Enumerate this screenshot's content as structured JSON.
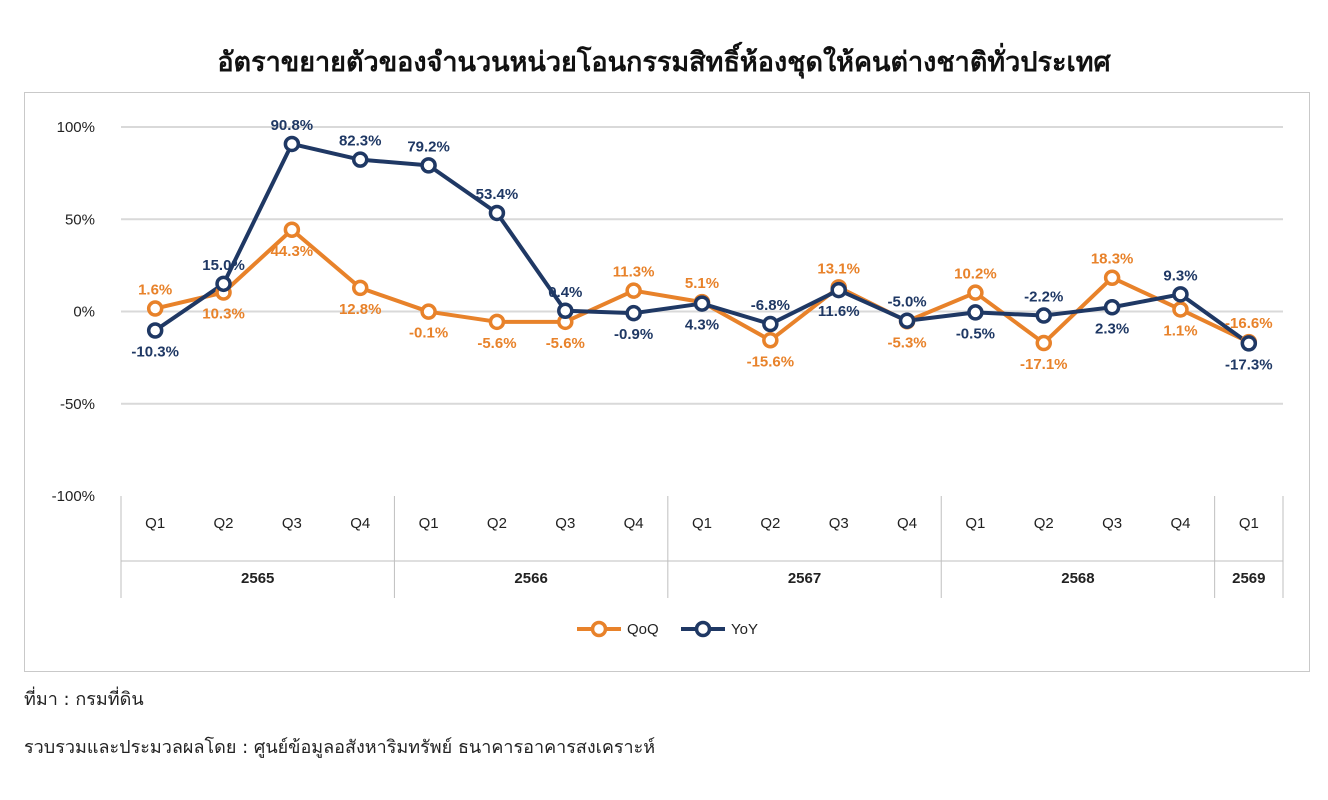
{
  "title": "อัตราขยายตัวของจำนวนหน่วยโอนกรรมสิทธิ์ห้องชุดให้คนต่างชาติทั่วประเทศ",
  "source_note": "ที่มา : กรมที่ดิน",
  "compiled_note": "รวบรวมและประมวลผลโดย : ศูนย์ข้อมูลอสังหาริมทรัพย์ ธนาคารอาคารสงเคราะห์",
  "colors": {
    "qoq": "#E8822A",
    "yoy": "#1F3864",
    "grid": "#d9d9d9",
    "divider": "#bfbfbf"
  },
  "chart_data": {
    "type": "line",
    "title": "อัตราขยายตัวของจำนวนหน่วยโอนกรรมสิทธิ์ห้องชุดให้คนต่างชาติทั่วประเทศ",
    "ylim": [
      -100,
      100
    ],
    "yticks": [
      100,
      50,
      0,
      -50,
      -100
    ],
    "ytick_labels": [
      "100%",
      "50%",
      "0%",
      "-50%",
      "-100%"
    ],
    "categories": [
      "Q1",
      "Q2",
      "Q3",
      "Q4",
      "Q1",
      "Q2",
      "Q3",
      "Q4",
      "Q1",
      "Q2",
      "Q3",
      "Q4",
      "Q1",
      "Q2",
      "Q3",
      "Q4",
      "Q1"
    ],
    "years": [
      {
        "label": "2565",
        "count": 4
      },
      {
        "label": "2566",
        "count": 4
      },
      {
        "label": "2567",
        "count": 4
      },
      {
        "label": "2568",
        "count": 4
      },
      {
        "label": "2569",
        "count": 1
      }
    ],
    "series": [
      {
        "name": "QoQ",
        "color": "#E8822A",
        "values": [
          1.6,
          10.3,
          44.3,
          12.8,
          -0.1,
          -5.6,
          -5.6,
          11.3,
          5.1,
          -15.6,
          13.1,
          -5.3,
          10.2,
          -17.1,
          18.3,
          1.1,
          -16.6
        ],
        "labels": [
          "1.6%",
          "10.3%",
          "44.3%",
          "12.8%",
          "-0.1%",
          "-5.6%",
          "-5.6%",
          "11.3%",
          "5.1%",
          "-15.6%",
          "13.1%",
          "-5.3%",
          "10.2%",
          "-17.1%",
          "18.3%",
          "1.1%",
          "-16.6%"
        ]
      },
      {
        "name": "YoY",
        "color": "#1F3864",
        "values": [
          -10.3,
          15.0,
          90.8,
          82.3,
          79.2,
          53.4,
          0.4,
          -0.9,
          4.3,
          -6.8,
          11.6,
          -5.0,
          -0.5,
          -2.2,
          2.3,
          9.3,
          -17.3
        ],
        "labels": [
          "-10.3%",
          "15.0%",
          "90.8%",
          "82.3%",
          "79.2%",
          "53.4%",
          "0.4%",
          "-0.9%",
          "4.3%",
          "-6.8%",
          "11.6%",
          "-5.0%",
          "-0.5%",
          "-2.2%",
          "2.3%",
          "9.3%",
          "-17.3%"
        ]
      }
    ],
    "legend": "bottom-center",
    "grid": true
  }
}
